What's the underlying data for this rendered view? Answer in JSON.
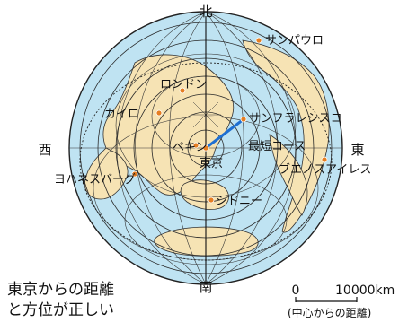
{
  "map": {
    "directions": {
      "north": "北",
      "south": "南",
      "east": "東",
      "west": "西"
    },
    "cities": [
      {
        "id": "tokyo",
        "label": "東京"
      },
      {
        "id": "sao-paulo",
        "label": "サンパウロ"
      },
      {
        "id": "london",
        "label": "ロンドン"
      },
      {
        "id": "cairo",
        "label": "カイロ"
      },
      {
        "id": "san-francisco",
        "label": "サンフラレシスコ"
      },
      {
        "id": "beijing",
        "label": "ペキン"
      },
      {
        "id": "buenos-aires",
        "label": "ブエノスアイレス"
      },
      {
        "id": "johannesburg",
        "label": "ヨハネスバーグ"
      },
      {
        "id": "sydney",
        "label": "シドニー"
      }
    ],
    "route_label": "最短コース",
    "note_line1": "東京からの距離",
    "note_line2": "と方位が正しい",
    "scale": {
      "start": "0",
      "end": "10000km",
      "caption": "(中心からの距離)"
    },
    "colors": {
      "ocean": "#bfe3f2",
      "land": "#f6e3b4",
      "grid": "#2a2a2a",
      "city_dot": "#e67e22",
      "route": "#1f6fd1",
      "route_label": "#e6007e"
    }
  }
}
